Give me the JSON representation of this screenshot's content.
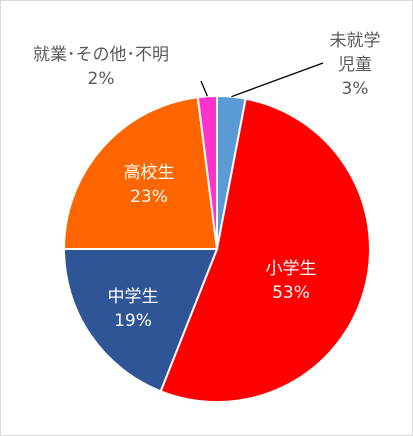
{
  "chart_data": {
    "type": "pie",
    "categories": [
      "未就学児童",
      "小学生",
      "中学生",
      "高校生",
      "就業･その他･不明"
    ],
    "values": [
      3,
      53,
      19,
      23,
      2
    ],
    "value_labels": [
      "3%",
      "53%",
      "19%",
      "23%",
      "2%"
    ],
    "colors": [
      "#5b9bd5",
      "#ff0000",
      "#2f5597",
      "#ff6600",
      "#ff33cc"
    ]
  }
}
